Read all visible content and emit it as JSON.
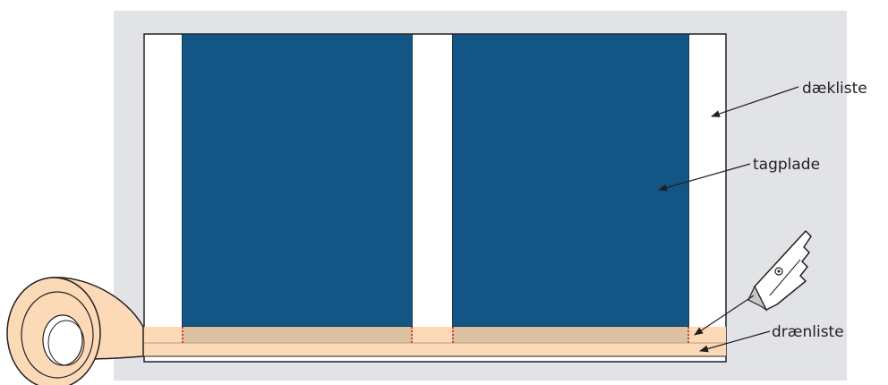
{
  "labels": {
    "cover_strip": "dækliste",
    "roof_panel": "tagplade",
    "drain_strip": "drænliste"
  },
  "colors": {
    "background_panel": "#e1e3e6",
    "frame_white": "#ffffff",
    "roof_panel_blue": "#135686",
    "tape_peach": "#fcd9b7",
    "drain_band_tan": "#dcc1a3",
    "marker_red": "#e03a2a",
    "outline": "#231f20"
  },
  "icons": {
    "knife": "utility-knife-icon",
    "tape_roll": "tape-roll-icon"
  }
}
